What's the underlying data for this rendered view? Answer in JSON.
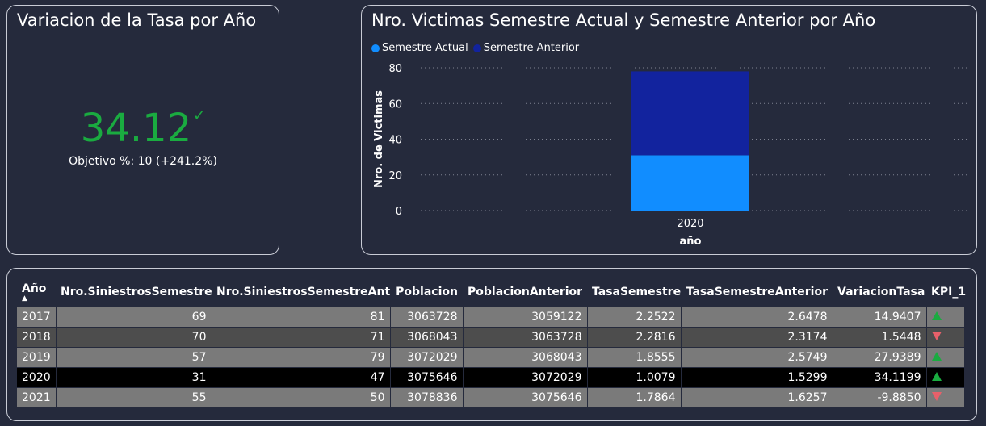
{
  "kpi": {
    "title": "Variacion de la Tasa por Año",
    "value": "34.12",
    "check_icon": "✓",
    "goal_text": "Objetivo %: 10 (+241.2%)",
    "value_color": "#1aab40"
  },
  "chart": {
    "title": "Nro. Victimas Semestre Actual y Semestre Anterior por Año",
    "legend": [
      {
        "label": "Semestre Actual",
        "color": "#118dff"
      },
      {
        "label": "Semestre Anterior",
        "color": "#12239e"
      }
    ]
  },
  "chart_data": {
    "type": "bar",
    "stacked": true,
    "title": "Nro. Victimas Semestre Actual y Semestre Anterior por Año",
    "categories": [
      "2020"
    ],
    "series": [
      {
        "name": "Semestre Actual",
        "values": [
          31
        ],
        "color": "#118dff"
      },
      {
        "name": "Semestre Anterior",
        "values": [
          47
        ],
        "color": "#12239e"
      }
    ],
    "xlabel": "año",
    "ylabel": "Nro. de Victimas",
    "ylim": [
      0,
      80
    ],
    "yticks": [
      0,
      20,
      40,
      60,
      80
    ],
    "grid": true,
    "legend_position": "top-left"
  },
  "table": {
    "columns": [
      "Año",
      "Nro.SiniestrosSemestre",
      "Nro.SiniestrosSemestreAnt",
      "Poblacion",
      "PoblacionAnterior",
      "TasaSemestre",
      "TasaSemestreAnterior",
      "VariacionTasa",
      "KPI_1"
    ],
    "sort_icon": "▲",
    "rows": [
      {
        "anio": "2017",
        "siniestros": "69",
        "siniestros_ant": "81",
        "poblacion": "3063728",
        "poblacion_ant": "3059122",
        "tasa": "2.2522",
        "tasa_ant": "2.6478",
        "variacion": "14.9407",
        "kpi": "up"
      },
      {
        "anio": "2018",
        "siniestros": "70",
        "siniestros_ant": "71",
        "poblacion": "3068043",
        "poblacion_ant": "3063728",
        "tasa": "2.2816",
        "tasa_ant": "2.3174",
        "variacion": "1.5448",
        "kpi": "down"
      },
      {
        "anio": "2019",
        "siniestros": "57",
        "siniestros_ant": "79",
        "poblacion": "3072029",
        "poblacion_ant": "3068043",
        "tasa": "1.8555",
        "tasa_ant": "2.5749",
        "variacion": "27.9389",
        "kpi": "up"
      },
      {
        "anio": "2020",
        "siniestros": "31",
        "siniestros_ant": "47",
        "poblacion": "3075646",
        "poblacion_ant": "3072029",
        "tasa": "1.0079",
        "tasa_ant": "1.5299",
        "variacion": "34.1199",
        "kpi": "up"
      },
      {
        "anio": "2021",
        "siniestros": "55",
        "siniestros_ant": "50",
        "poblacion": "3078836",
        "poblacion_ant": "3075646",
        "tasa": "1.7864",
        "tasa_ant": "1.6257",
        "variacion": "-9.8850",
        "kpi": "down"
      }
    ],
    "selected_row": "2020"
  }
}
